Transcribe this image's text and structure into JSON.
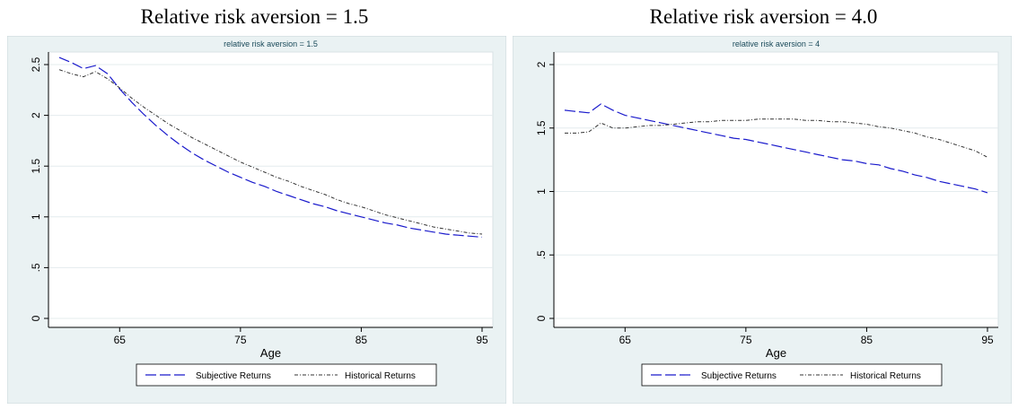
{
  "figure_titles": [
    "Relative risk aversion = 1.5",
    "Relative risk aversion = 4.0"
  ],
  "colors": {
    "panel_bg": "#eaf2f3",
    "plot_bg": "#ffffff",
    "grid": "#e4ecee",
    "subjective": "#1a1acc",
    "historical": "#333333"
  },
  "chart_data": [
    {
      "type": "line",
      "title": "relative risk aversion = 1.5",
      "xlabel": "Age",
      "ylabel": "",
      "xlim": [
        60,
        95
      ],
      "ylim": [
        0,
        2.5
      ],
      "xticks": [
        65,
        75,
        85,
        95
      ],
      "xtick_labels": [
        "65",
        "75",
        "85",
        "95"
      ],
      "yticks": [
        0,
        0.5,
        1,
        1.5,
        2,
        2.5
      ],
      "ytick_labels": [
        "0",
        ".5",
        "1",
        "1.5",
        "2",
        "2.5"
      ],
      "grid": true,
      "legend": "bottom",
      "series": [
        {
          "name": "Subjective Returns",
          "style": "dashed",
          "x": [
            60,
            61,
            62,
            63,
            64,
            65,
            66,
            67,
            68,
            69,
            70,
            71,
            72,
            73,
            74,
            75,
            76,
            77,
            78,
            79,
            80,
            81,
            82,
            83,
            84,
            85,
            86,
            87,
            88,
            89,
            90,
            91,
            92,
            93,
            94,
            95
          ],
          "y": [
            2.57,
            2.52,
            2.46,
            2.49,
            2.41,
            2.26,
            2.13,
            2.01,
            1.9,
            1.8,
            1.71,
            1.63,
            1.56,
            1.5,
            1.44,
            1.39,
            1.34,
            1.3,
            1.25,
            1.21,
            1.17,
            1.13,
            1.1,
            1.06,
            1.03,
            1.0,
            0.97,
            0.94,
            0.92,
            0.89,
            0.87,
            0.85,
            0.83,
            0.82,
            0.81,
            0.8
          ]
        },
        {
          "name": "Historical Returns",
          "style": "dash-dot",
          "x": [
            60,
            61,
            62,
            63,
            64,
            65,
            66,
            67,
            68,
            69,
            70,
            71,
            72,
            73,
            74,
            75,
            76,
            77,
            78,
            79,
            80,
            81,
            82,
            83,
            84,
            85,
            86,
            87,
            88,
            89,
            90,
            91,
            92,
            93,
            94,
            95
          ],
          "y": [
            2.45,
            2.41,
            2.38,
            2.43,
            2.36,
            2.27,
            2.17,
            2.08,
            2.0,
            1.92,
            1.85,
            1.78,
            1.72,
            1.66,
            1.6,
            1.54,
            1.49,
            1.44,
            1.39,
            1.35,
            1.3,
            1.26,
            1.22,
            1.17,
            1.13,
            1.1,
            1.06,
            1.02,
            0.99,
            0.96,
            0.93,
            0.9,
            0.88,
            0.86,
            0.84,
            0.83
          ]
        }
      ]
    },
    {
      "type": "line",
      "title": "relative risk aversion = 4",
      "xlabel": "Age",
      "ylabel": "",
      "xlim": [
        60,
        95
      ],
      "ylim": [
        0,
        2
      ],
      "xticks": [
        65,
        75,
        85,
        95
      ],
      "xtick_labels": [
        "65",
        "75",
        "85",
        "95"
      ],
      "yticks": [
        0,
        0.5,
        1,
        1.5,
        2
      ],
      "ytick_labels": [
        "0",
        ".5",
        "1",
        "1.5",
        "2"
      ],
      "grid": true,
      "legend": "bottom",
      "series": [
        {
          "name": "Subjective Returns",
          "style": "dashed",
          "x": [
            60,
            61,
            62,
            63,
            64,
            65,
            66,
            67,
            68,
            69,
            70,
            71,
            72,
            73,
            74,
            75,
            76,
            77,
            78,
            79,
            80,
            81,
            82,
            83,
            84,
            85,
            86,
            87,
            88,
            89,
            90,
            91,
            92,
            93,
            94,
            95
          ],
          "y": [
            1.64,
            1.63,
            1.62,
            1.69,
            1.64,
            1.6,
            1.58,
            1.56,
            1.54,
            1.52,
            1.5,
            1.48,
            1.46,
            1.44,
            1.42,
            1.41,
            1.39,
            1.37,
            1.35,
            1.33,
            1.31,
            1.29,
            1.27,
            1.25,
            1.24,
            1.22,
            1.21,
            1.18,
            1.16,
            1.13,
            1.11,
            1.08,
            1.06,
            1.04,
            1.02,
            0.99
          ]
        },
        {
          "name": "Historical Returns",
          "style": "dash-dot",
          "x": [
            60,
            61,
            62,
            63,
            64,
            65,
            66,
            67,
            68,
            69,
            70,
            71,
            72,
            73,
            74,
            75,
            76,
            77,
            78,
            79,
            80,
            81,
            82,
            83,
            84,
            85,
            86,
            87,
            88,
            89,
            90,
            91,
            92,
            93,
            94,
            95
          ],
          "y": [
            1.46,
            1.46,
            1.47,
            1.54,
            1.5,
            1.5,
            1.51,
            1.52,
            1.52,
            1.53,
            1.54,
            1.55,
            1.55,
            1.56,
            1.56,
            1.56,
            1.57,
            1.57,
            1.57,
            1.57,
            1.56,
            1.56,
            1.55,
            1.55,
            1.54,
            1.53,
            1.51,
            1.5,
            1.48,
            1.46,
            1.43,
            1.41,
            1.38,
            1.35,
            1.32,
            1.27
          ]
        }
      ]
    }
  ]
}
